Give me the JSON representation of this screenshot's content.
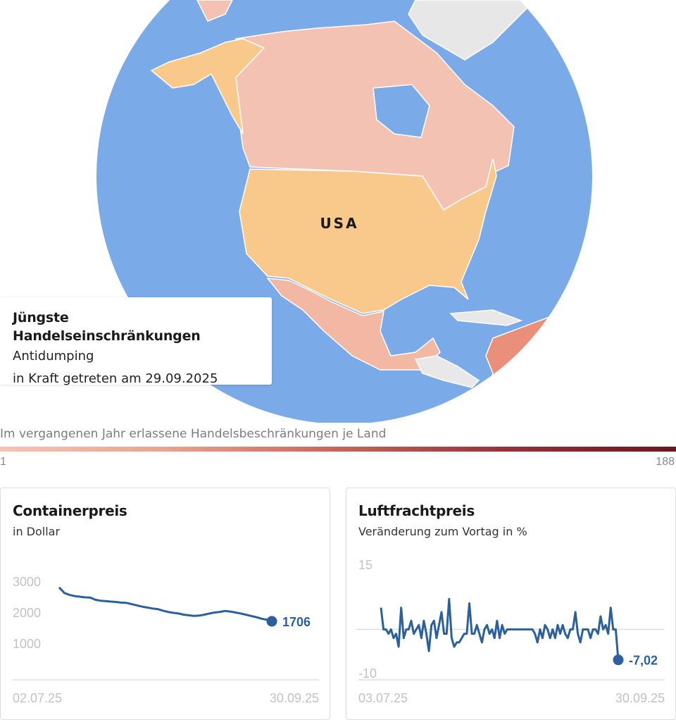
{
  "map": {
    "country_label": "USA",
    "colors": {
      "ocean": "#7aaae8",
      "usa": "#f9c98c",
      "canada": "#f4c2b2",
      "mexico": "#f3b8a4",
      "greenland": "#e7e7e7",
      "cuba": "#e8e8e8",
      "south_america": "#e98f7a",
      "border": "#ffffff"
    }
  },
  "info_box": {
    "title": "Jüngste Handelseinschränkungen",
    "measure": "Antidumping",
    "effective": "in Kraft getreten am 29.09.2025"
  },
  "legend": {
    "title": "Im vergangenen Jahr erlassene Handelsbeschränkungen je Land",
    "min": "1",
    "max": "188"
  },
  "chart_data": [
    {
      "type": "line",
      "title": "Containerpreis",
      "subtitle": "in Dollar",
      "color": "#2b5f9e",
      "ylim": [
        0,
        3000
      ],
      "yticks": [
        "3000",
        "2000",
        "1000"
      ],
      "xticks": [
        "02.07.25",
        "30.09.25"
      ],
      "last_value_label": "1706",
      "values": [
        2800,
        2620,
        2560,
        2520,
        2500,
        2480,
        2470,
        2400,
        2370,
        2360,
        2340,
        2330,
        2310,
        2300,
        2260,
        2220,
        2180,
        2150,
        2120,
        2100,
        2050,
        2010,
        1980,
        1960,
        1920,
        1900,
        1880,
        1890,
        1920,
        1960,
        1990,
        2010,
        2040,
        2020,
        1990,
        1960,
        1920,
        1880,
        1840,
        1790,
        1760,
        1706
      ]
    },
    {
      "type": "line",
      "title": "Luftfrachtpreis",
      "subtitle": "Veränderung zum Vortag in %",
      "color": "#2b5f9e",
      "ylim": [
        -10,
        15
      ],
      "yticks": [
        "15",
        "-10"
      ],
      "xticks": [
        "03.07.25",
        "30.09.25"
      ],
      "last_value_label": "-7,02",
      "values": [
        5,
        0,
        0,
        -1,
        0,
        -2,
        -1,
        -4,
        5,
        -2,
        0,
        0,
        2,
        -1,
        0,
        1,
        -2,
        2,
        -1,
        -5,
        1,
        2,
        -2,
        1,
        4,
        -1,
        -1,
        7,
        -2,
        -4,
        -3,
        -3,
        -2,
        -1,
        -1,
        6,
        -1,
        -1,
        1,
        -1,
        -3,
        0,
        1,
        -1,
        0,
        -2,
        2,
        -2,
        1,
        -1,
        0,
        0,
        0,
        0,
        0,
        0,
        0,
        0,
        0,
        0,
        0,
        -1,
        -3,
        0,
        -2,
        1,
        0,
        -2,
        0,
        -2,
        1,
        -1,
        1,
        -1,
        -2,
        0,
        0,
        4,
        -1,
        -3,
        0,
        0,
        0,
        -2,
        0,
        0,
        -1,
        3,
        0,
        1,
        -1,
        5,
        0,
        0,
        -7.02
      ]
    }
  ]
}
